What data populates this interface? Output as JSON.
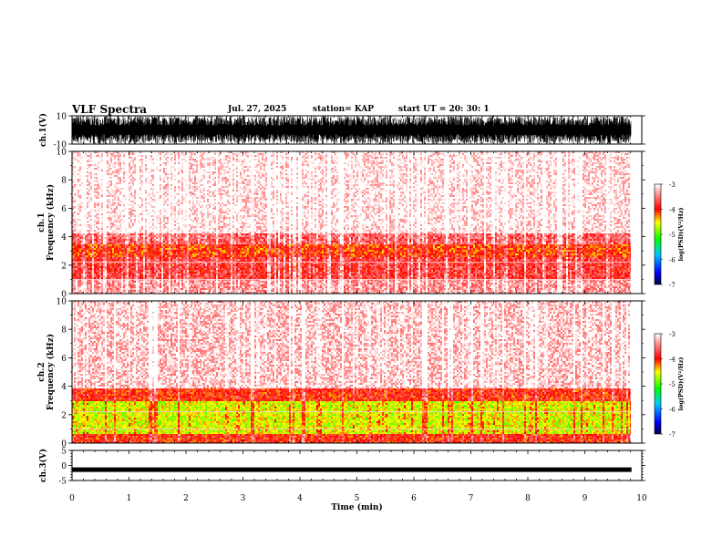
{
  "header": {
    "title": "VLF Spectra",
    "date": "Jul. 27, 2025",
    "station": "station= KAP",
    "start_ut": "start  UT  =   20: 30: 1"
  },
  "chart_data": [
    {
      "type": "line",
      "name": "ch1-waveform",
      "ylabel": "ch.1(V)",
      "ylim": [
        -10,
        10
      ],
      "yticks": [
        "10",
        "-10"
      ],
      "description_series": "dense noise waveform, peak-to-peak nearly full range"
    },
    {
      "type": "heatmap",
      "name": "ch1-spectrogram",
      "ylabel": "ch.1\nFrequency (kHz)",
      "ylim": [
        0,
        10
      ],
      "yticks": [
        "0",
        "2",
        "4",
        "6",
        "8",
        "10"
      ],
      "xlim": [
        0,
        10
      ],
      "colorbar": {
        "label": "log(PSD)(V²/Hz)",
        "range": [
          -7,
          -3
        ],
        "ticks": [
          "-3",
          "-4",
          "-5",
          "-6",
          "-7"
        ]
      },
      "bands": [
        {
          "from_khz": 0.0,
          "to_khz": 1.0,
          "level": -3.4
        },
        {
          "from_khz": 1.0,
          "to_khz": 2.6,
          "level": -3.8
        },
        {
          "from_khz": 2.6,
          "to_khz": 3.4,
          "level": -4.1
        },
        {
          "from_khz": 3.4,
          "to_khz": 4.2,
          "level": -3.6
        },
        {
          "from_khz": 4.2,
          "to_khz": 10.0,
          "level": -3.1
        }
      ]
    },
    {
      "type": "heatmap",
      "name": "ch2-spectrogram",
      "ylabel": "ch.2\nFrequency (kHz)",
      "ylim": [
        0,
        10
      ],
      "yticks": [
        "0",
        "2",
        "4",
        "6",
        "8",
        "10"
      ],
      "xlim": [
        0,
        10
      ],
      "colorbar": {
        "label": "log(PSD)(V²/Hz)",
        "range": [
          -7,
          -3
        ],
        "ticks": [
          "-3",
          "-4",
          "-5",
          "-6",
          "-7"
        ]
      },
      "bands": [
        {
          "from_khz": 0.0,
          "to_khz": 0.6,
          "level": -4.0
        },
        {
          "from_khz": 0.6,
          "to_khz": 3.0,
          "level": -4.6
        },
        {
          "from_khz": 3.0,
          "to_khz": 3.8,
          "level": -4.0
        },
        {
          "from_khz": 3.8,
          "to_khz": 10.0,
          "level": -3.2
        }
      ]
    },
    {
      "type": "line",
      "name": "ch3-waveform",
      "ylabel": "ch.3(V)",
      "ylim": [
        -5,
        5
      ],
      "yticks": [
        "5",
        "0",
        "-5"
      ],
      "xlabel": "Time  (min)",
      "xlim": [
        0,
        10
      ],
      "xticks": [
        "0",
        "1",
        "2",
        "3",
        "4",
        "5",
        "6",
        "7",
        "8",
        "9",
        "10"
      ],
      "constant_level": -1.4,
      "data_end_min": 9.82
    }
  ]
}
